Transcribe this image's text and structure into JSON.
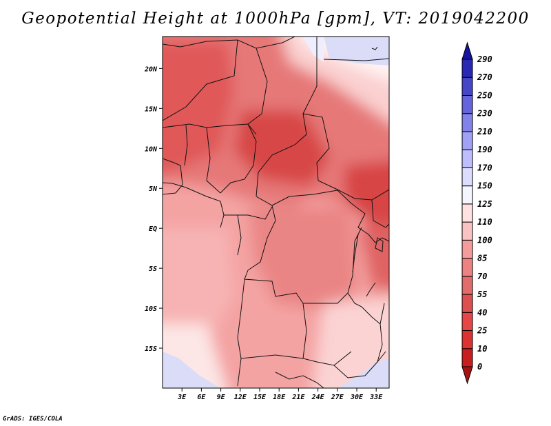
{
  "title": "Geopotential Height at 1000hPa [gpm], VT: 2019042200",
  "footer": "GrADS: IGES/COLA",
  "map": {
    "projection": "latlon",
    "variable": "Geopotential Height",
    "level": "1000hPa",
    "units": "gpm",
    "valid_time": "2019042200",
    "lon_range": [
      0,
      35
    ],
    "lat_range": [
      -20,
      24
    ],
    "lon_ticks": [
      {
        "value": 3,
        "label": "3E"
      },
      {
        "value": 6,
        "label": "6E"
      },
      {
        "value": 9,
        "label": "9E"
      },
      {
        "value": 12,
        "label": "12E"
      },
      {
        "value": 15,
        "label": "15E"
      },
      {
        "value": 18,
        "label": "18E"
      },
      {
        "value": 21,
        "label": "21E"
      },
      {
        "value": 24,
        "label": "24E"
      },
      {
        "value": 27,
        "label": "27E"
      },
      {
        "value": 30,
        "label": "30E"
      },
      {
        "value": 33,
        "label": "33E"
      }
    ],
    "lat_ticks": [
      {
        "value": 20,
        "label": "20N"
      },
      {
        "value": 15,
        "label": "15N"
      },
      {
        "value": 10,
        "label": "10N"
      },
      {
        "value": 5,
        "label": "5N"
      },
      {
        "value": 0,
        "label": "EQ"
      },
      {
        "value": -5,
        "label": "5S"
      },
      {
        "value": -10,
        "label": "10S"
      },
      {
        "value": -15,
        "label": "15S"
      }
    ]
  },
  "colorbar": {
    "levels": [
      "0",
      "10",
      "25",
      "40",
      "55",
      "70",
      "85",
      "100",
      "110",
      "125",
      "150",
      "170",
      "190",
      "210",
      "230",
      "250",
      "270",
      "290"
    ],
    "colors": [
      "#a51414",
      "#c81e1e",
      "#dc3232",
      "#e64646",
      "#dc5050",
      "#e06c6c",
      "#ec8282",
      "#f49b9b",
      "#fac3c3",
      "#ffe1e1",
      "#f5f5ff",
      "#dcdcff",
      "#bebeff",
      "#a0a0f5",
      "#8282eb",
      "#6464dc",
      "#4646c8",
      "#2828b4",
      "#1414a0"
    ]
  }
}
